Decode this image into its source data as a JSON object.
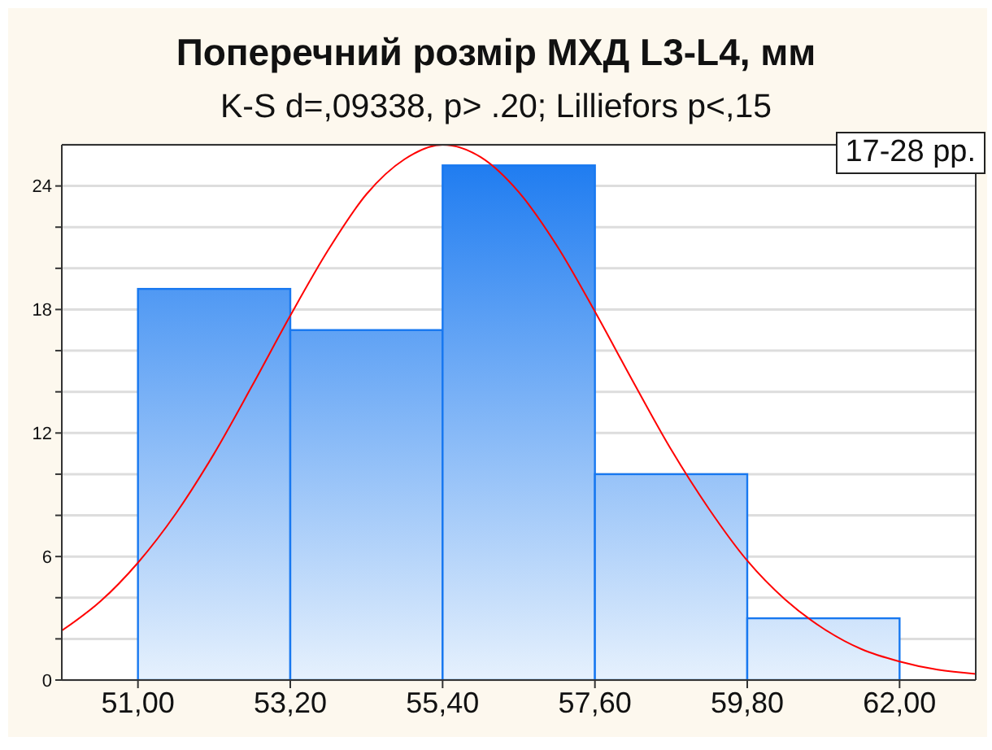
{
  "chart_data": {
    "type": "histogram",
    "title": "Поперечний розмір МХД L3-L4, мм",
    "subtitle": "K-S d=,09338, p> .20; Lilliefors p<,15",
    "annotations": [
      "17-28 рр."
    ],
    "bins": [
      51,
      53.2,
      55.4,
      57.6,
      59.8,
      62
    ],
    "values": [
      19,
      17,
      25,
      10,
      3
    ],
    "color": "#1878f0",
    "series": [
      {
        "type": "line",
        "color": "#ff0000",
        "x": [
          49.9,
          50.45,
          51,
          51.55,
          52.1,
          52.65,
          53.2,
          53.75,
          54.3,
          54.85,
          55.4,
          55.95,
          56.5,
          57.05,
          57.6,
          58.15,
          58.7,
          59.25,
          59.8,
          60.35,
          60.9,
          61.45,
          62,
          62.55,
          63.1
        ],
        "values": [
          2.4,
          3.8,
          5.7,
          8.1,
          11.0,
          14.3,
          17.7,
          20.9,
          23.6,
          25.3,
          26.0,
          25.4,
          23.7,
          21.1,
          17.9,
          14.5,
          11.2,
          8.3,
          5.8,
          3.9,
          2.5,
          1.5,
          0.9,
          0.5,
          0.3
        ]
      }
    ],
    "xlim": [
      49.9,
      63.1
    ],
    "ylim": [
      0,
      26
    ],
    "xticks": [
      {
        "value": 51,
        "label": "51,00"
      },
      {
        "value": 53.2,
        "label": "53,20"
      },
      {
        "value": 55.4,
        "label": "55,40"
      },
      {
        "value": 57.6,
        "label": "57,60"
      },
      {
        "value": 59.8,
        "label": "59,80"
      },
      {
        "value": 62,
        "label": "62,00"
      }
    ],
    "yticks": [
      0,
      {
        "value": 2,
        "label": null
      },
      {
        "value": 4,
        "label": null
      },
      6,
      {
        "value": 8,
        "label": null
      },
      {
        "value": 10,
        "label": null
      },
      12,
      {
        "value": 14,
        "label": null
      },
      {
        "value": 16,
        "label": null
      },
      18,
      {
        "value": 20,
        "label": null
      },
      {
        "value": 22,
        "label": null
      },
      24
    ],
    "grid": "y"
  }
}
